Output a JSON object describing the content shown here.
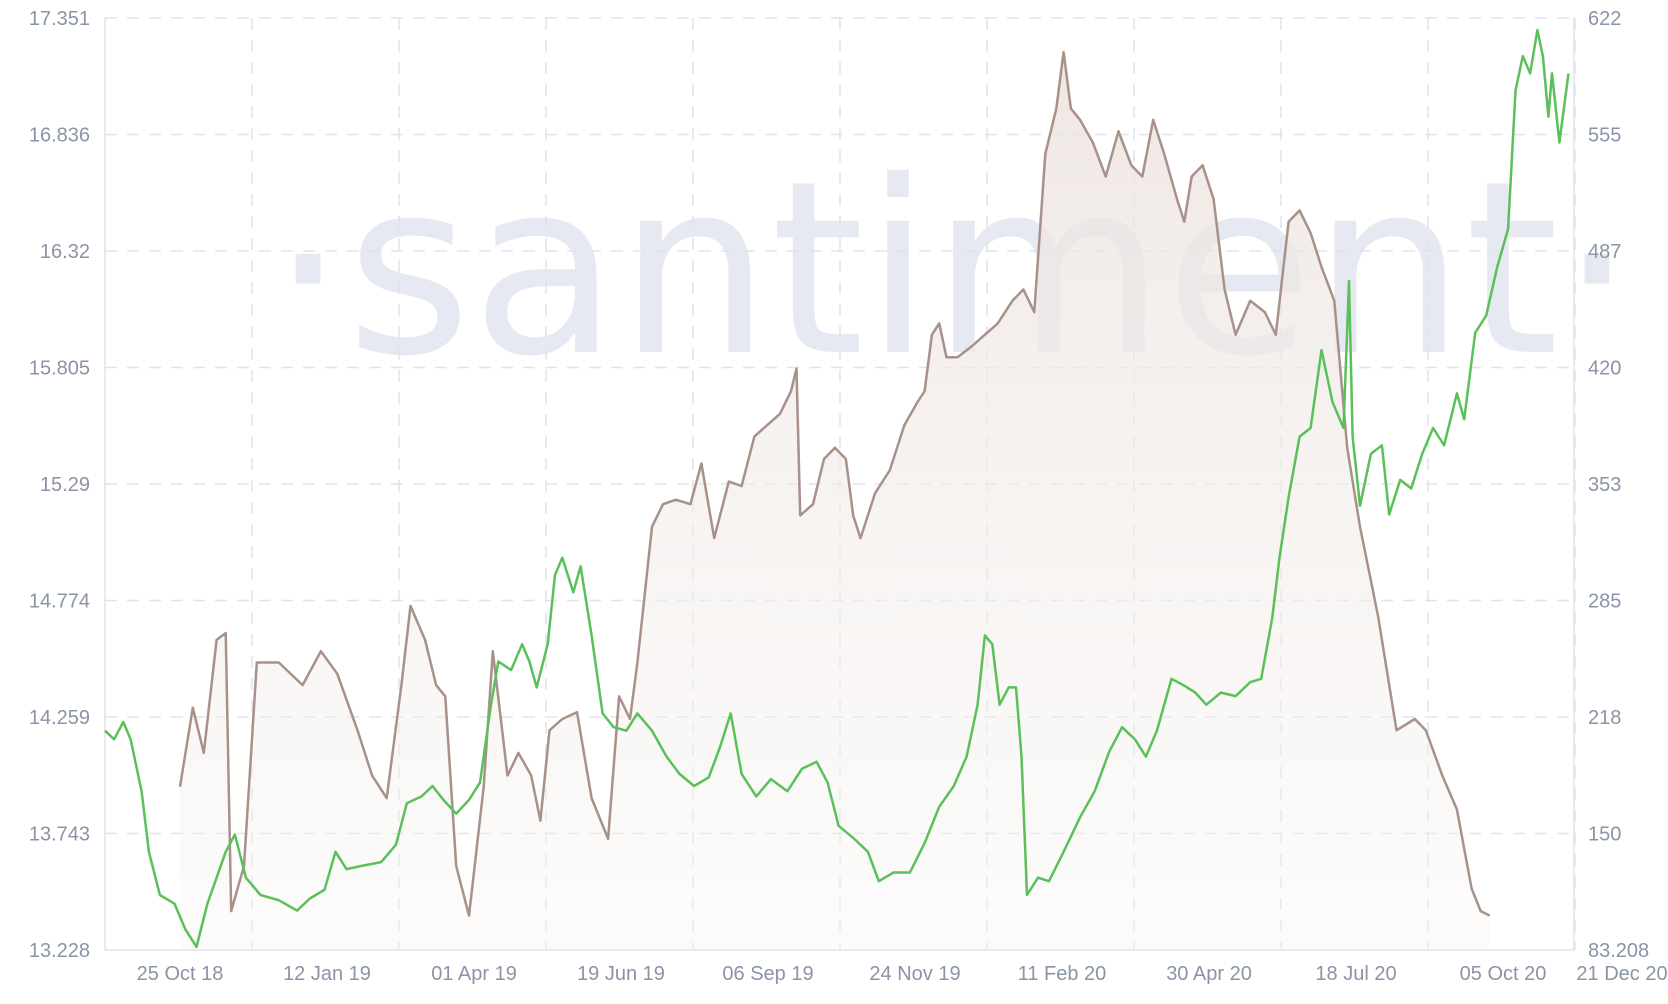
{
  "watermark": "·santiment·",
  "chart_data": {
    "type": "line",
    "title": "",
    "xlabel": "",
    "ylabel": "",
    "grid": true,
    "x_ticks": [
      "25 Oct 18",
      "12 Jan 19",
      "01 Apr 19",
      "19 Jun 19",
      "06 Sep 19",
      "24 Nov 19",
      "11 Feb 20",
      "30 Apr 20",
      "18 Jul 20",
      "05 Oct 20",
      "21 Dec 20"
    ],
    "x_range": [
      "2018-10-25",
      "2021-01-05"
    ],
    "y_left": {
      "ticks": [
        "13.228",
        "13.743",
        "14.259",
        "14.774",
        "15.29",
        "15.805",
        "16.32",
        "16.836",
        "17.351"
      ],
      "range": [
        13.228,
        17.351
      ]
    },
    "y_right": {
      "ticks": [
        "83.208",
        "150",
        "218",
        "285",
        "353",
        "420",
        "487",
        "555",
        "622"
      ],
      "range": [
        83.208,
        622
      ]
    },
    "series": [
      {
        "axis": "left",
        "style": "area",
        "color": "#a89189",
        "points": [
          [
            "2018-12-05",
            13.95
          ],
          [
            "2018-12-12",
            14.3
          ],
          [
            "2018-12-18",
            14.1
          ],
          [
            "2018-12-25",
            14.6
          ],
          [
            "2018-12-30",
            14.63
          ],
          [
            "2019-01-02",
            13.4
          ],
          [
            "2019-01-09",
            13.6
          ],
          [
            "2019-01-16",
            14.5
          ],
          [
            "2019-01-28",
            14.5
          ],
          [
            "2019-02-10",
            14.4
          ],
          [
            "2019-02-20",
            14.55
          ],
          [
            "2019-03-01",
            14.45
          ],
          [
            "2019-03-12",
            14.2
          ],
          [
            "2019-03-20",
            14.0
          ],
          [
            "2019-03-28",
            13.9
          ],
          [
            "2019-04-05",
            14.4
          ],
          [
            "2019-04-10",
            14.75
          ],
          [
            "2019-04-18",
            14.6
          ],
          [
            "2019-04-24",
            14.4
          ],
          [
            "2019-04-29",
            14.35
          ],
          [
            "2019-05-05",
            13.6
          ],
          [
            "2019-05-12",
            13.38
          ],
          [
            "2019-05-20",
            13.95
          ],
          [
            "2019-05-25",
            14.55
          ],
          [
            "2019-06-02",
            14.0
          ],
          [
            "2019-06-08",
            14.1
          ],
          [
            "2019-06-15",
            14.0
          ],
          [
            "2019-06-20",
            13.8
          ],
          [
            "2019-06-25",
            14.2
          ],
          [
            "2019-07-02",
            14.25
          ],
          [
            "2019-07-10",
            14.28
          ],
          [
            "2019-07-18",
            13.9
          ],
          [
            "2019-07-27",
            13.72
          ],
          [
            "2019-08-02",
            14.35
          ],
          [
            "2019-08-08",
            14.25
          ],
          [
            "2019-08-12",
            14.5
          ],
          [
            "2019-08-20",
            15.1
          ],
          [
            "2019-08-26",
            15.2
          ],
          [
            "2019-09-02",
            15.22
          ],
          [
            "2019-09-10",
            15.2
          ],
          [
            "2019-09-16",
            15.38
          ],
          [
            "2019-09-23",
            15.05
          ],
          [
            "2019-10-01",
            15.3
          ],
          [
            "2019-10-08",
            15.28
          ],
          [
            "2019-10-15",
            15.5
          ],
          [
            "2019-10-22",
            15.55
          ],
          [
            "2019-10-29",
            15.6
          ],
          [
            "2019-11-04",
            15.7
          ],
          [
            "2019-11-07",
            15.8
          ],
          [
            "2019-11-09",
            15.15
          ],
          [
            "2019-11-16",
            15.2
          ],
          [
            "2019-11-22",
            15.4
          ],
          [
            "2019-11-28",
            15.45
          ],
          [
            "2019-12-04",
            15.4
          ],
          [
            "2019-12-08",
            15.15
          ],
          [
            "2019-12-12",
            15.05
          ],
          [
            "2019-12-20",
            15.25
          ],
          [
            "2019-12-28",
            15.35
          ],
          [
            "2020-01-05",
            15.55
          ],
          [
            "2020-01-12",
            15.65
          ],
          [
            "2020-01-16",
            15.7
          ],
          [
            "2020-01-20",
            15.95
          ],
          [
            "2020-01-24",
            16.0
          ],
          [
            "2020-01-28",
            15.85
          ],
          [
            "2020-02-03",
            15.85
          ],
          [
            "2020-02-11",
            15.9
          ],
          [
            "2020-02-18",
            15.95
          ],
          [
            "2020-02-25",
            16.0
          ],
          [
            "2020-03-04",
            16.1
          ],
          [
            "2020-03-10",
            16.15
          ],
          [
            "2020-03-16",
            16.05
          ],
          [
            "2020-03-22",
            16.75
          ],
          [
            "2020-03-28",
            16.95
          ],
          [
            "2020-04-01",
            17.2
          ],
          [
            "2020-04-05",
            16.95
          ],
          [
            "2020-04-10",
            16.9
          ],
          [
            "2020-04-17",
            16.8
          ],
          [
            "2020-04-24",
            16.65
          ],
          [
            "2020-05-01",
            16.85
          ],
          [
            "2020-05-08",
            16.7
          ],
          [
            "2020-05-14",
            16.65
          ],
          [
            "2020-05-20",
            16.9
          ],
          [
            "2020-05-26",
            16.75
          ],
          [
            "2020-06-02",
            16.55
          ],
          [
            "2020-06-06",
            16.45
          ],
          [
            "2020-06-10",
            16.65
          ],
          [
            "2020-06-16",
            16.7
          ],
          [
            "2020-06-22",
            16.55
          ],
          [
            "2020-06-28",
            16.15
          ],
          [
            "2020-07-04",
            15.95
          ],
          [
            "2020-07-12",
            16.1
          ],
          [
            "2020-07-20",
            16.05
          ],
          [
            "2020-07-26",
            15.95
          ],
          [
            "2020-08-02",
            16.45
          ],
          [
            "2020-08-08",
            16.5
          ],
          [
            "2020-08-14",
            16.4
          ],
          [
            "2020-08-20",
            16.25
          ],
          [
            "2020-08-27",
            16.1
          ],
          [
            "2020-09-03",
            15.45
          ],
          [
            "2020-09-10",
            15.1
          ],
          [
            "2020-09-20",
            14.7
          ],
          [
            "2020-09-30",
            14.2
          ],
          [
            "2020-10-10",
            14.25
          ],
          [
            "2020-10-16",
            14.2
          ],
          [
            "2020-10-25",
            14.0
          ],
          [
            "2020-11-02",
            13.85
          ],
          [
            "2020-11-10",
            13.5
          ],
          [
            "2020-11-15",
            13.4
          ],
          [
            "2020-11-20",
            13.38
          ]
        ]
      },
      {
        "axis": "right",
        "style": "line",
        "color": "#5ac05a",
        "points": [
          [
            "2018-10-25",
            210
          ],
          [
            "2018-10-30",
            205
          ],
          [
            "2018-11-04",
            215
          ],
          [
            "2018-11-08",
            205
          ],
          [
            "2018-11-14",
            175
          ],
          [
            "2018-11-18",
            140
          ],
          [
            "2018-11-24",
            115
          ],
          [
            "2018-12-02",
            110
          ],
          [
            "2018-12-08",
            95
          ],
          [
            "2018-12-14",
            85
          ],
          [
            "2018-12-20",
            110
          ],
          [
            "2018-12-25",
            125
          ],
          [
            "2018-12-30",
            140
          ],
          [
            "2019-01-04",
            150
          ],
          [
            "2019-01-10",
            125
          ],
          [
            "2019-01-18",
            115
          ],
          [
            "2019-01-28",
            112
          ],
          [
            "2019-02-07",
            106
          ],
          [
            "2019-02-14",
            113
          ],
          [
            "2019-02-22",
            118
          ],
          [
            "2019-02-28",
            140
          ],
          [
            "2019-03-06",
            130
          ],
          [
            "2019-03-15",
            132
          ],
          [
            "2019-03-25",
            134
          ],
          [
            "2019-04-02",
            144
          ],
          [
            "2019-04-08",
            168
          ],
          [
            "2019-04-16",
            172
          ],
          [
            "2019-04-22",
            178
          ],
          [
            "2019-04-28",
            170
          ],
          [
            "2019-05-05",
            162
          ],
          [
            "2019-05-12",
            170
          ],
          [
            "2019-05-18",
            180
          ],
          [
            "2019-05-24",
            225
          ],
          [
            "2019-05-28",
            250
          ],
          [
            "2019-06-04",
            245
          ],
          [
            "2019-06-10",
            260
          ],
          [
            "2019-06-14",
            250
          ],
          [
            "2019-06-18",
            235
          ],
          [
            "2019-06-24",
            260
          ],
          [
            "2019-06-28",
            300
          ],
          [
            "2019-07-02",
            310
          ],
          [
            "2019-07-08",
            290
          ],
          [
            "2019-07-12",
            305
          ],
          [
            "2019-07-18",
            265
          ],
          [
            "2019-07-24",
            220
          ],
          [
            "2019-07-30",
            212
          ],
          [
            "2019-08-06",
            210
          ],
          [
            "2019-08-12",
            220
          ],
          [
            "2019-08-20",
            210
          ],
          [
            "2019-08-28",
            195
          ],
          [
            "2019-09-04",
            185
          ],
          [
            "2019-09-12",
            178
          ],
          [
            "2019-09-20",
            183
          ],
          [
            "2019-09-26",
            200
          ],
          [
            "2019-10-02",
            220
          ],
          [
            "2019-10-08",
            185
          ],
          [
            "2019-10-16",
            172
          ],
          [
            "2019-10-24",
            182
          ],
          [
            "2019-11-02",
            175
          ],
          [
            "2019-11-10",
            188
          ],
          [
            "2019-11-18",
            192
          ],
          [
            "2019-11-24",
            180
          ],
          [
            "2019-11-30",
            155
          ],
          [
            "2019-12-08",
            148
          ],
          [
            "2019-12-16",
            140
          ],
          [
            "2019-12-22",
            123
          ],
          [
            "2019-12-30",
            128
          ],
          [
            "2020-01-08",
            128
          ],
          [
            "2020-01-16",
            145
          ],
          [
            "2020-01-24",
            166
          ],
          [
            "2020-02-01",
            178
          ],
          [
            "2020-02-08",
            195
          ],
          [
            "2020-02-14",
            225
          ],
          [
            "2020-02-18",
            265
          ],
          [
            "2020-02-22",
            260
          ],
          [
            "2020-02-26",
            225
          ],
          [
            "2020-03-02",
            235
          ],
          [
            "2020-03-06",
            235
          ],
          [
            "2020-03-09",
            195
          ],
          [
            "2020-03-12",
            115
          ],
          [
            "2020-03-18",
            125
          ],
          [
            "2020-03-24",
            123
          ],
          [
            "2020-04-01",
            140
          ],
          [
            "2020-04-10",
            160
          ],
          [
            "2020-04-18",
            175
          ],
          [
            "2020-04-26",
            198
          ],
          [
            "2020-05-03",
            212
          ],
          [
            "2020-05-10",
            205
          ],
          [
            "2020-05-16",
            195
          ],
          [
            "2020-05-22",
            210
          ],
          [
            "2020-05-30",
            240
          ],
          [
            "2020-06-06",
            236
          ],
          [
            "2020-06-12",
            232
          ],
          [
            "2020-06-18",
            225
          ],
          [
            "2020-06-26",
            232
          ],
          [
            "2020-07-04",
            230
          ],
          [
            "2020-07-12",
            238
          ],
          [
            "2020-07-18",
            240
          ],
          [
            "2020-07-24",
            275
          ],
          [
            "2020-07-28",
            310
          ],
          [
            "2020-08-02",
            345
          ],
          [
            "2020-08-08",
            380
          ],
          [
            "2020-08-14",
            385
          ],
          [
            "2020-08-20",
            430
          ],
          [
            "2020-08-26",
            400
          ],
          [
            "2020-09-01",
            385
          ],
          [
            "2020-09-04",
            470
          ],
          [
            "2020-09-06",
            380
          ],
          [
            "2020-09-10",
            340
          ],
          [
            "2020-09-16",
            370
          ],
          [
            "2020-09-22",
            375
          ],
          [
            "2020-09-26",
            335
          ],
          [
            "2020-10-02",
            355
          ],
          [
            "2020-10-08",
            350
          ],
          [
            "2020-10-14",
            370
          ],
          [
            "2020-10-20",
            385
          ],
          [
            "2020-10-26",
            375
          ],
          [
            "2020-11-02",
            405
          ],
          [
            "2020-11-06",
            390
          ],
          [
            "2020-11-12",
            440
          ],
          [
            "2020-11-18",
            450
          ],
          [
            "2020-11-24",
            478
          ],
          [
            "2020-11-30",
            500
          ],
          [
            "2020-12-04",
            580
          ],
          [
            "2020-12-08",
            600
          ],
          [
            "2020-12-12",
            590
          ],
          [
            "2020-12-16",
            615
          ],
          [
            "2020-12-19",
            600
          ],
          [
            "2020-12-22",
            565
          ],
          [
            "2020-12-24",
            590
          ],
          [
            "2020-12-28",
            550
          ],
          [
            "2021-01-02",
            590
          ]
        ]
      }
    ]
  }
}
